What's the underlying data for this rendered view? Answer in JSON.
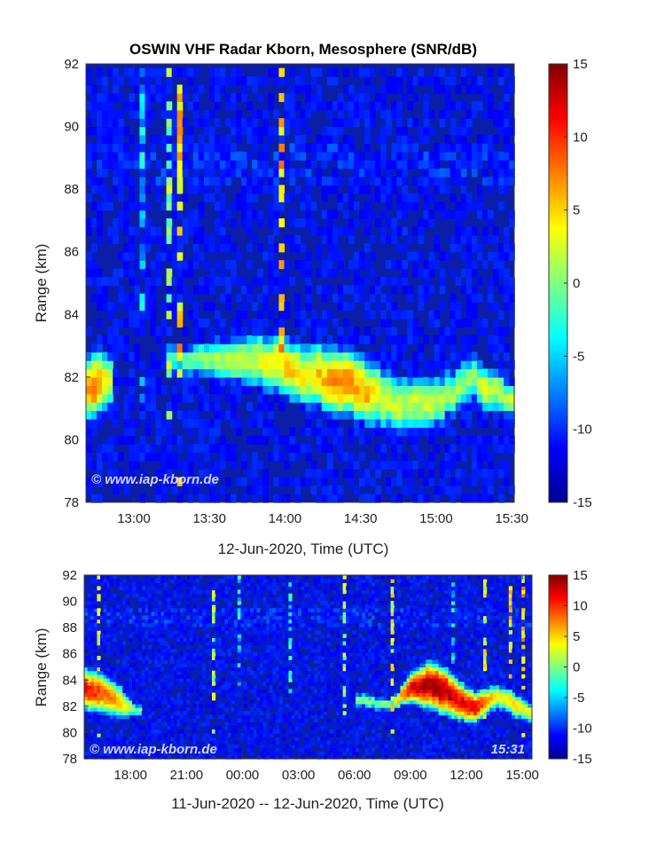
{
  "chart_data": [
    {
      "type": "heatmap",
      "title": "OSWIN VHF Radar Kborn, Mesosphere (SNR/dB)",
      "xlabel": "12-Jun-2020, Time (UTC)",
      "ylabel": "Range (km)",
      "x_range": [
        "12:41",
        "15:31"
      ],
      "ylim": [
        78,
        92
      ],
      "x_tick_labels": [
        "13:00",
        "13:30",
        "14:00",
        "14:30",
        "15:00",
        "15:30"
      ],
      "y_tick_labels": [
        "78",
        "80",
        "82",
        "84",
        "86",
        "88",
        "90",
        "92"
      ],
      "colorbar_label": "SNR/dB",
      "colorbar_range": [
        -15,
        15
      ],
      "colorbar_ticks": [
        "15",
        "10",
        "5",
        "0",
        "-5",
        "-10",
        "-15"
      ],
      "colormap": "jet",
      "watermark": "© www.iap-kborn.de",
      "echo_layer": {
        "description_time_utc": [
          "12:41",
          "12:45",
          "12:50",
          "13:15",
          "13:30",
          "13:45",
          "14:00",
          "14:10",
          "14:20",
          "14:30",
          "14:40",
          "14:50",
          "15:00",
          "15:10",
          "15:15",
          "15:20",
          "15:25",
          "15:31"
        ],
        "center_km": [
          81.8,
          81.7,
          81.9,
          82.6,
          82.5,
          82.6,
          82.4,
          82.1,
          81.9,
          81.7,
          81.3,
          81.1,
          81.2,
          81.7,
          82.0,
          81.7,
          81.5,
          81.3
        ],
        "half_width_km": [
          1.0,
          1.1,
          0.9,
          0.5,
          0.7,
          0.9,
          1.0,
          1.1,
          1.1,
          1.1,
          1.1,
          1.0,
          0.9,
          0.8,
          0.8,
          0.8,
          0.7,
          0.6
        ],
        "peak_snr_db": [
          6,
          8,
          3,
          -3,
          1,
          2,
          5,
          4,
          7,
          7,
          2,
          2,
          2,
          1,
          0,
          3,
          2,
          2
        ]
      }
    },
    {
      "type": "heatmap",
      "xlabel": "11-Jun-2020 -- 12-Jun-2020, Time (UTC)",
      "ylabel": "Range (km)",
      "x_range": [
        "11-Jun 15:31",
        "12-Jun 15:31"
      ],
      "ylim": [
        78,
        92
      ],
      "x_tick_labels": [
        "18:00",
        "21:00",
        "00:00",
        "03:00",
        "06:00",
        "09:00",
        "12:00",
        "15:00"
      ],
      "y_tick_labels": [
        "78",
        "80",
        "82",
        "84",
        "86",
        "88",
        "90",
        "92"
      ],
      "colorbar_range": [
        -15,
        15
      ],
      "colorbar_ticks": [
        "15",
        "10",
        "5",
        "0",
        "-5",
        "-10",
        "-15"
      ],
      "colormap": "jet",
      "watermark": "© www.iap-kborn.de",
      "timestamp": "15:31",
      "echo_layer": {
        "description_time_utc": [
          "15:31",
          "16:30",
          "17:30",
          "18:15",
          "06:15",
          "06:45",
          "08:00",
          "09:00",
          "10:00",
          "10:45",
          "11:30",
          "12:30",
          "13:45",
          "14:30",
          "15:31"
        ],
        "center_km": [
          83.3,
          83.0,
          82.3,
          81.8,
          82.6,
          82.4,
          82.1,
          83.4,
          83.6,
          83.3,
          82.6,
          81.9,
          82.8,
          82.3,
          81.5
        ],
        "half_width_km": [
          1.5,
          1.5,
          1.3,
          0.5,
          0.6,
          0.6,
          0.5,
          1.0,
          1.6,
          1.6,
          1.4,
          1.1,
          1.0,
          1.0,
          0.8
        ],
        "peak_snr_db": [
          11,
          9,
          5,
          0,
          0,
          0,
          1,
          12,
          14,
          14,
          12,
          12,
          3,
          5,
          3
        ]
      }
    }
  ]
}
